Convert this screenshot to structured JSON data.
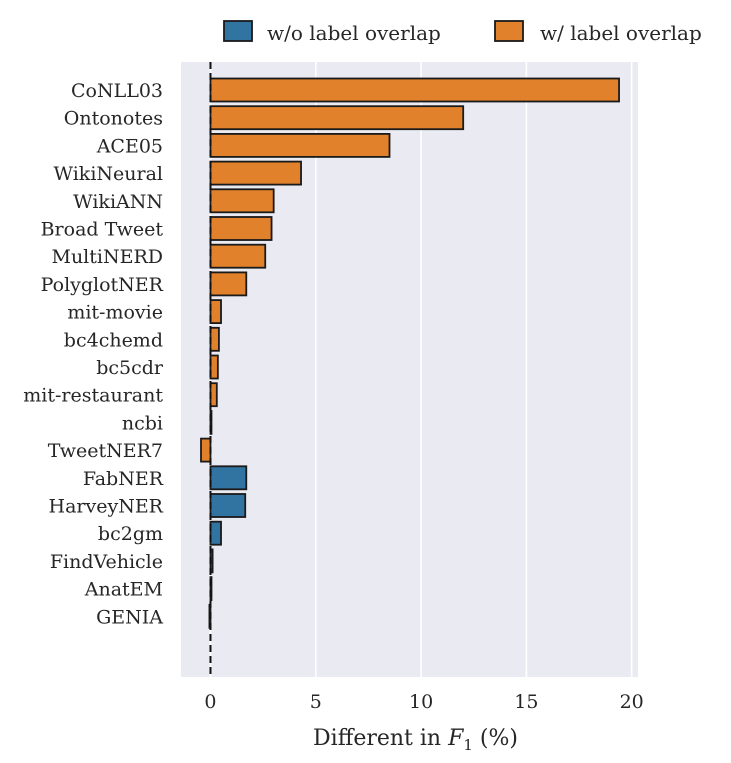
{
  "chart_data": {
    "type": "bar",
    "orientation": "horizontal",
    "title": "",
    "xlabel_prefix": "Different in ",
    "xlabel_var": "F",
    "xlabel_sub": "1",
    "xlabel_suffix": " (%)",
    "ylabel": "",
    "xlim": [
      -1.4,
      20.3
    ],
    "xticks": [
      0,
      5,
      10,
      15,
      20
    ],
    "grid": true,
    "legend_position": "top",
    "reference_line": 0,
    "series": [
      {
        "name": "w/o label overlap",
        "key": "without",
        "color": "#3274a1"
      },
      {
        "name": "w/ label overlap",
        "key": "with",
        "color": "#e1812c"
      }
    ],
    "bars": [
      {
        "label": "CoNLL03",
        "value": 19.4,
        "series": "with"
      },
      {
        "label": "Ontonotes",
        "value": 12.0,
        "series": "with"
      },
      {
        "label": "ACE05",
        "value": 8.5,
        "series": "with"
      },
      {
        "label": "WikiNeural",
        "value": 4.3,
        "series": "with"
      },
      {
        "label": "WikiANN",
        "value": 3.0,
        "series": "with"
      },
      {
        "label": "Broad Tweet",
        "value": 2.9,
        "series": "with"
      },
      {
        "label": "MultiNERD",
        "value": 2.6,
        "series": "with"
      },
      {
        "label": "PolyglotNER",
        "value": 1.7,
        "series": "with"
      },
      {
        "label": "mit-movie",
        "value": 0.5,
        "series": "with"
      },
      {
        "label": "bc4chemd",
        "value": 0.4,
        "series": "with"
      },
      {
        "label": "bc5cdr",
        "value": 0.35,
        "series": "with"
      },
      {
        "label": "mit-restaurant",
        "value": 0.3,
        "series": "with"
      },
      {
        "label": "ncbi",
        "value": 0.02,
        "series": "with"
      },
      {
        "label": "TweetNER7",
        "value": -0.45,
        "series": "with"
      },
      {
        "label": "FabNER",
        "value": 1.7,
        "series": "without"
      },
      {
        "label": "HarveyNER",
        "value": 1.65,
        "series": "without"
      },
      {
        "label": "bc2gm",
        "value": 0.5,
        "series": "without"
      },
      {
        "label": "FindVehicle",
        "value": 0.1,
        "series": "without"
      },
      {
        "label": "AnatEM",
        "value": 0.03,
        "series": "without"
      },
      {
        "label": "GENIA",
        "value": -0.05,
        "series": "without"
      }
    ]
  }
}
